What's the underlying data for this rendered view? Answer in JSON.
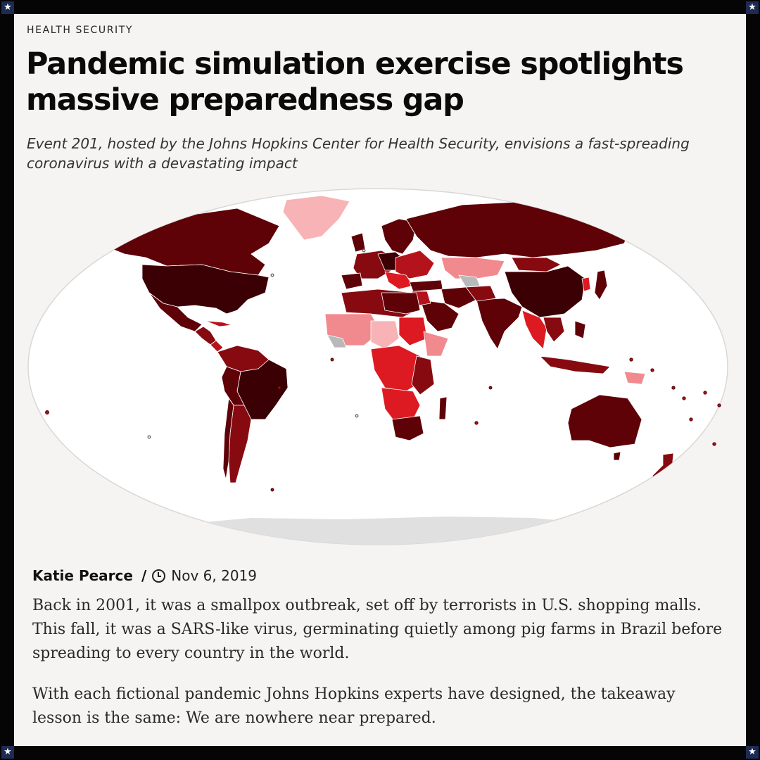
{
  "article": {
    "category": "HEALTH SECURITY",
    "headline": "Pandemic simulation exercise spotlights massive preparedness gap",
    "dek": "Event 201, hosted by the Johns Hopkins Center for Health Security, envisions a fast-spreading coronavirus with a devastating impact",
    "author": "Katie Pearce",
    "separator": "/",
    "date": "Nov 6, 2019",
    "paragraphs": [
      "Back in 2001, it was a smallpox outbreak, set off by terrorists in U.S. shopping malls. This fall, it was a SARS-like virus, germinating quietly among pig farms in Brazil before spreading to every country in the world.",
      "With each fictional pandemic Johns Hopkins experts have designed, the takeaway lesson is the same: We are nowhere near prepared."
    ]
  },
  "frame": {
    "corner_glyph": "★"
  },
  "map": {
    "description_icon": "world-choropleth-map",
    "colors": {
      "darkest": "#3b0004",
      "dark": "#5e0207",
      "medium_dark": "#870a10",
      "medium": "#b5131b",
      "red": "#dd1a21",
      "light": "#f08a8f",
      "lightest": "#f7b3b6",
      "no_data": "#b9b9b9",
      "antarctica": "#e0e0e0",
      "ocean": "#ffffff"
    }
  }
}
